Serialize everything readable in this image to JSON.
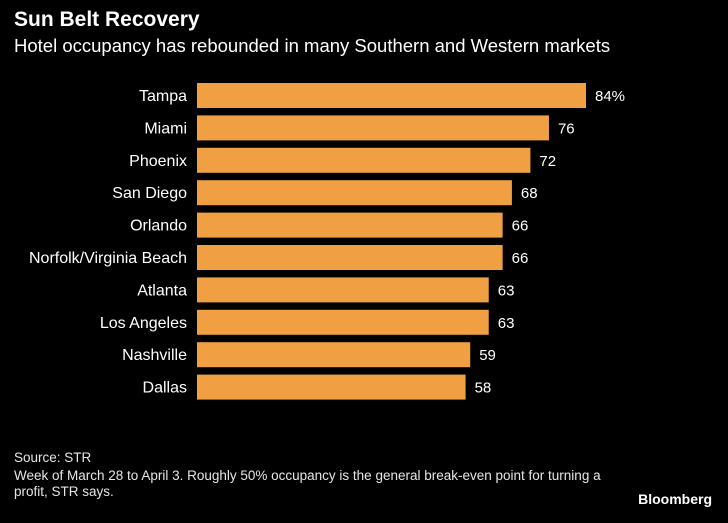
{
  "chart_data": {
    "type": "bar",
    "orientation": "horizontal",
    "title": "Sun Belt Recovery",
    "subtitle": "Hotel occupancy has rebounded in many Southern and Western markets",
    "categories": [
      "Tampa",
      "Miami",
      "Phoenix",
      "San Diego",
      "Orlando",
      "Norfolk/Virginia Beach",
      "Atlanta",
      "Los Angeles",
      "Nashville",
      "Dallas"
    ],
    "values": [
      84,
      76,
      72,
      68,
      66,
      66,
      63,
      63,
      59,
      58
    ],
    "value_labels": [
      "84%",
      "76",
      "72",
      "68",
      "66",
      "66",
      "63",
      "63",
      "59",
      "58"
    ],
    "xlabel": "",
    "ylabel": "",
    "xlim": [
      0,
      84
    ],
    "grid": false,
    "bar_color": "#f0a042"
  },
  "footer": {
    "source": "Source: STR",
    "note": "Week of March 28 to April 3. Roughly 50% occupancy is the general break-even point for turning a profit, STR says.",
    "brand": "Bloomberg"
  },
  "colors": {
    "background": "#000000",
    "text": "#ffffff",
    "bar": "#f0a042"
  }
}
